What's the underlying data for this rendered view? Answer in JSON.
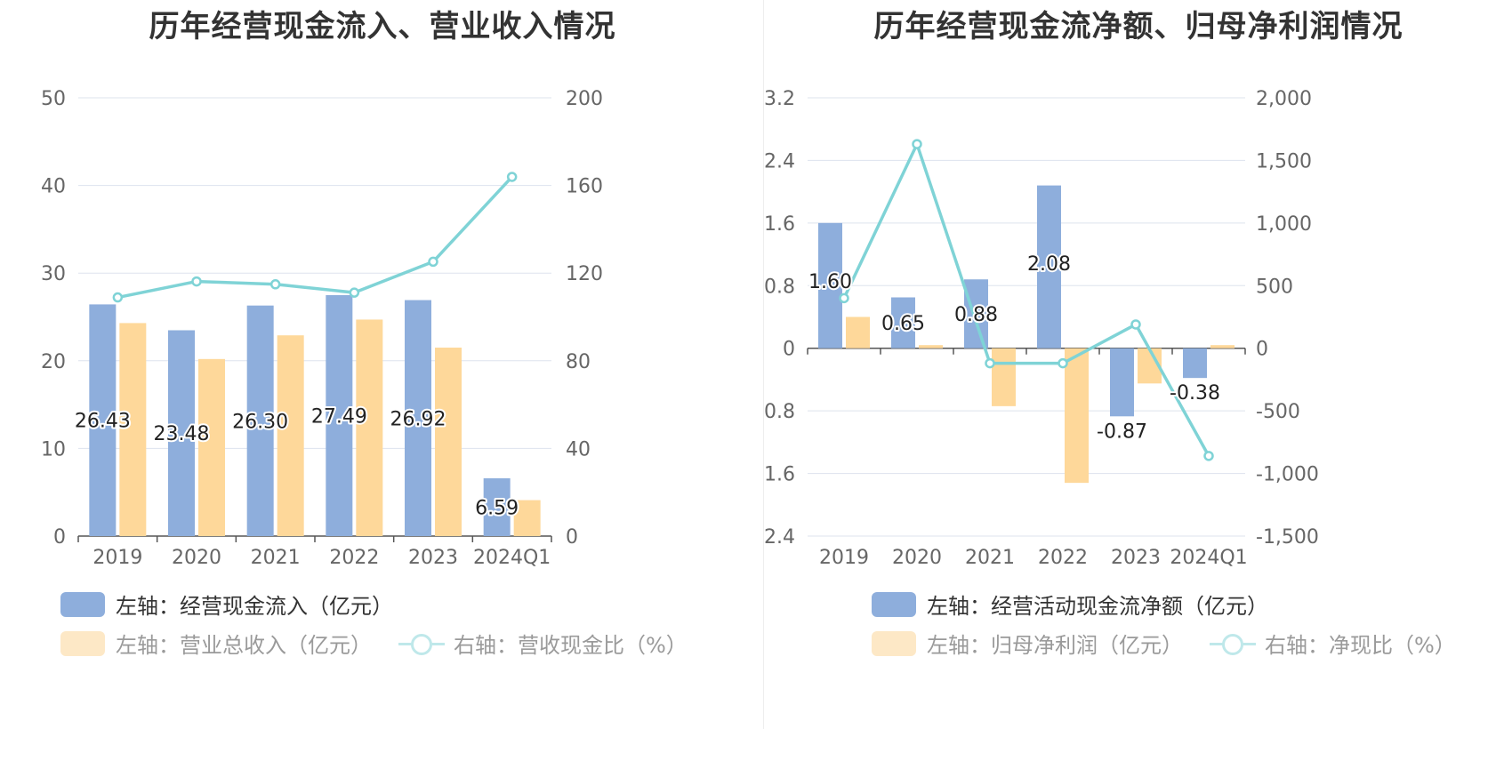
{
  "colors": {
    "bar_blue": "#8eaedc",
    "bar_orange": "#fed89a",
    "line_teal": "#7fd3d6",
    "grid": "#dde3ee",
    "axis_text": "#666666",
    "legend_text": "#333333",
    "legend_text_faded": "#9a9a9a",
    "legend_orange_faded": "#fde8c6",
    "legend_teal_faded": "#bfe8ea"
  },
  "charts": [
    {
      "id": "left",
      "title": "历年经营现金流入、营业收入情况",
      "legend": [
        {
          "label": "左轴：经营现金流入（亿元）",
          "kind": "bar",
          "series": 0,
          "faded": false
        },
        {
          "label": "左轴：营业总收入（亿元）",
          "kind": "bar",
          "series": 1,
          "faded": true
        },
        {
          "label": "右轴：营收现金比（%）",
          "kind": "line",
          "series": 2,
          "faded": true
        }
      ]
    },
    {
      "id": "right",
      "title": "历年经营现金流净额、归母净利润情况",
      "legend": [
        {
          "label": "左轴：经营活动现金流净额（亿元）",
          "kind": "bar",
          "series": 0,
          "faded": false
        },
        {
          "label": "左轴：归母净利润（亿元）",
          "kind": "bar",
          "series": 1,
          "faded": true
        },
        {
          "label": "右轴：净现比（%）",
          "kind": "line",
          "series": 2,
          "faded": true
        }
      ]
    }
  ],
  "chart_data": [
    {
      "type": "bar",
      "title": "历年经营现金流入、营业收入情况",
      "categories": [
        "2019",
        "2020",
        "2021",
        "2022",
        "2023",
        "2024Q1"
      ],
      "left_axis": {
        "min": 0,
        "max": 50,
        "ticks": [
          "0",
          "10",
          "20",
          "30",
          "40",
          "50"
        ]
      },
      "right_axis": {
        "min": 0,
        "max": 200,
        "ticks": [
          "0",
          "40",
          "80",
          "120",
          "160",
          "200"
        ]
      },
      "series": [
        {
          "name": "左轴：经营现金流入（亿元）",
          "type": "bar",
          "axis": "left",
          "values": [
            26.43,
            23.48,
            26.3,
            27.49,
            26.92,
            6.59
          ],
          "labels": [
            "26.43",
            "23.48",
            "26.30",
            "27.49",
            "26.92",
            "6.59"
          ]
        },
        {
          "name": "左轴：营业总收入（亿元）",
          "type": "bar",
          "axis": "left",
          "values": [
            24.3,
            20.2,
            22.9,
            24.7,
            21.5,
            4.1
          ]
        },
        {
          "name": "右轴：营收现金比（%）",
          "type": "line",
          "axis": "right",
          "values": [
            108.9,
            116.2,
            114.9,
            111.1,
            125.2,
            163.9
          ]
        }
      ],
      "grid": true,
      "legend_position": "bottom"
    },
    {
      "type": "bar",
      "title": "历年经营现金流净额、归母净利润情况",
      "categories": [
        "2019",
        "2020",
        "2021",
        "2022",
        "2023",
        "2024Q1"
      ],
      "left_axis": {
        "min": -2.4,
        "max": 3.2,
        "ticks": [
          "-2.4",
          "-1.6",
          "-0.8",
          "0",
          "0.8",
          "1.6",
          "2.4",
          "3.2"
        ]
      },
      "right_axis": {
        "min": -1500,
        "max": 2000,
        "ticks": [
          "-1,500",
          "-1,000",
          "-500",
          "0",
          "500",
          "1,000",
          "1,500",
          "2,000"
        ]
      },
      "series": [
        {
          "name": "左轴：经营活动现金流净额（亿元）",
          "type": "bar",
          "axis": "left",
          "values": [
            1.6,
            0.65,
            0.88,
            2.08,
            -0.87,
            -0.38
          ],
          "labels": [
            "1.60",
            "0.65",
            "0.88",
            "2.08",
            "-0.87",
            "-0.38"
          ]
        },
        {
          "name": "左轴：归母净利润（亿元）",
          "type": "bar",
          "axis": "left",
          "values": [
            0.4,
            0.04,
            -0.74,
            -1.72,
            -0.45,
            0.04
          ]
        },
        {
          "name": "右轴：净现比（%）",
          "type": "line",
          "axis": "right",
          "values": [
            400,
            1630,
            -120,
            -120,
            190,
            -860
          ]
        }
      ],
      "grid": true,
      "legend_position": "bottom"
    }
  ]
}
